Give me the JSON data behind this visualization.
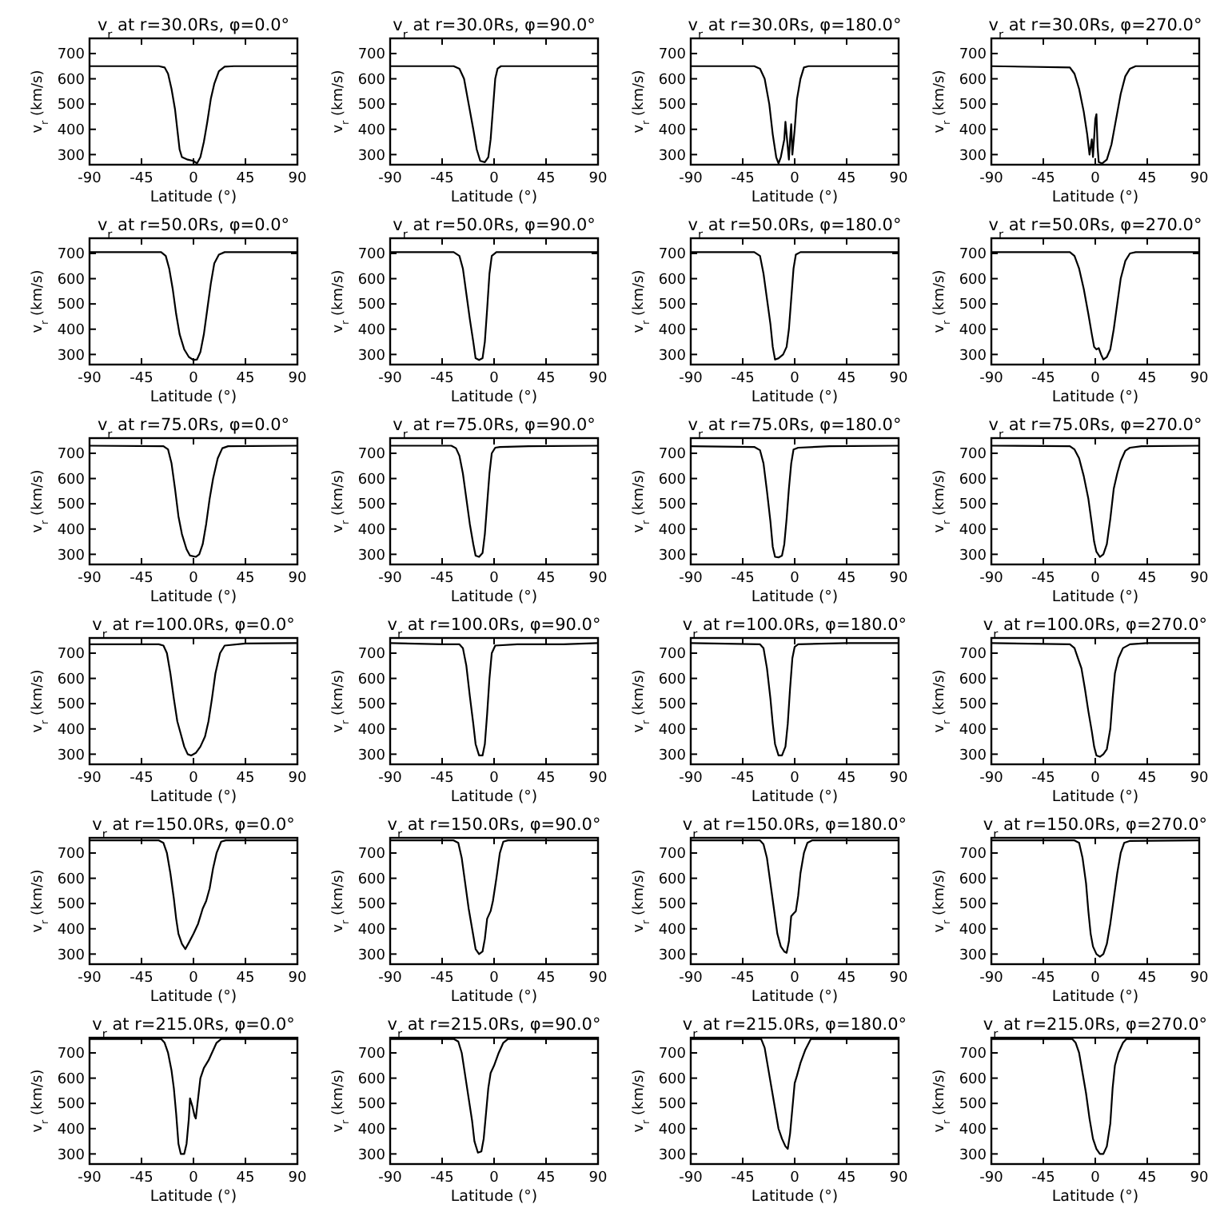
{
  "chart_data": [
    {
      "type": "line",
      "title": "v$_{r}$ at r=30.0Rs,  φ=0.0°",
      "xlabel": "Latitude (°)",
      "ylabel": "v$_{r}$ (km/s)",
      "xlim": [
        -90,
        90
      ],
      "xticks": [
        -90,
        -45,
        0,
        45,
        90
      ],
      "ylim": [
        260,
        760
      ],
      "yticks": [
        300,
        400,
        500,
        600,
        700
      ],
      "series": [
        {
          "color": "#000000",
          "x": [
            -90,
            -30,
            -25,
            -22,
            -19,
            -16,
            -14,
            -12,
            -10,
            -5,
            0,
            3,
            6,
            9,
            12,
            15,
            18,
            22,
            27,
            35,
            90
          ],
          "values": [
            650,
            650,
            645,
            620,
            560,
            480,
            400,
            320,
            290,
            280,
            275,
            265,
            290,
            350,
            430,
            520,
            580,
            630,
            648,
            650,
            650
          ]
        }
      ]
    },
    {
      "type": "line",
      "title": "v$_{r}$ at r=30.0Rs,  φ=90.0°",
      "xlabel": "Latitude (°)",
      "ylabel": "v$_{r}$ (km/s)",
      "xlim": [
        -90,
        90
      ],
      "xticks": [
        -90,
        -45,
        0,
        45,
        90
      ],
      "ylim": [
        260,
        760
      ],
      "yticks": [
        300,
        400,
        500,
        600,
        700
      ],
      "series": [
        {
          "color": "#000000",
          "x": [
            -90,
            -35,
            -30,
            -26,
            -22,
            -18,
            -15,
            -12,
            -8,
            -5,
            -3,
            -1,
            1,
            3,
            6,
            90
          ],
          "values": [
            650,
            650,
            640,
            600,
            500,
            400,
            320,
            275,
            270,
            290,
            360,
            480,
            600,
            640,
            650,
            650
          ]
        }
      ]
    },
    {
      "type": "line",
      "title": "v$_{r}$ at r=30.0Rs,  φ=180.0°",
      "xlabel": "Latitude (°)",
      "ylabel": "v$_{r}$ (km/s)",
      "xlim": [
        -90,
        90
      ],
      "xticks": [
        -90,
        -45,
        0,
        45,
        90
      ],
      "ylim": [
        260,
        760
      ],
      "yticks": [
        300,
        400,
        500,
        600,
        700
      ],
      "series": [
        {
          "color": "#000000",
          "x": [
            -90,
            -35,
            -30,
            -26,
            -22,
            -19,
            -16,
            -14,
            -12,
            -9,
            -8,
            -6,
            -5,
            -4,
            -3,
            -2,
            0,
            2,
            5,
            8,
            12,
            90
          ],
          "values": [
            650,
            650,
            640,
            600,
            500,
            380,
            290,
            265,
            290,
            360,
            430,
            330,
            280,
            360,
            420,
            300,
            400,
            520,
            600,
            645,
            650,
            650
          ]
        }
      ]
    },
    {
      "type": "line",
      "title": "v$_{r}$ at r=30.0Rs,  φ=270.0°",
      "xlabel": "Latitude (°)",
      "ylabel": "v$_{r}$ (km/s)",
      "xlim": [
        -90,
        90
      ],
      "xticks": [
        -90,
        -45,
        0,
        45,
        90
      ],
      "ylim": [
        260,
        760
      ],
      "yticks": [
        300,
        400,
        500,
        600,
        700
      ],
      "series": [
        {
          "color": "#000000",
          "x": [
            -90,
            -22,
            -18,
            -14,
            -10,
            -7,
            -5,
            -3,
            -2,
            0,
            1,
            2,
            3,
            6,
            10,
            14,
            18,
            22,
            26,
            30,
            35,
            90
          ],
          "values": [
            650,
            645,
            620,
            560,
            470,
            380,
            300,
            360,
            290,
            440,
            460,
            330,
            270,
            265,
            280,
            340,
            440,
            540,
            610,
            640,
            650,
            650
          ]
        }
      ]
    },
    {
      "type": "line",
      "title": "v$_{r}$ at r=50.0Rs,  φ=0.0°",
      "xlabel": "Latitude (°)",
      "ylabel": "v$_{r}$ (km/s)",
      "xlim": [
        -90,
        90
      ],
      "xticks": [
        -90,
        -45,
        0,
        45,
        90
      ],
      "ylim": [
        260,
        760
      ],
      "yticks": [
        300,
        400,
        500,
        600,
        700
      ],
      "series": [
        {
          "color": "#000000",
          "x": [
            -90,
            -28,
            -24,
            -21,
            -18,
            -15,
            -12,
            -8,
            -4,
            0,
            3,
            6,
            9,
            12,
            15,
            18,
            22,
            27,
            90
          ],
          "values": [
            705,
            705,
            690,
            640,
            560,
            460,
            380,
            320,
            290,
            278,
            280,
            310,
            380,
            480,
            580,
            660,
            695,
            705,
            705
          ]
        }
      ]
    },
    {
      "type": "line",
      "title": "v$_{r}$ at r=50.0Rs,  φ=90.0°",
      "xlabel": "Latitude (°)",
      "ylabel": "v$_{r}$ (km/s)",
      "xlim": [
        -90,
        90
      ],
      "xticks": [
        -90,
        -45,
        0,
        45,
        90
      ],
      "ylim": [
        260,
        760
      ],
      "yticks": [
        300,
        400,
        500,
        600,
        700
      ],
      "series": [
        {
          "color": "#000000",
          "x": [
            -90,
            -35,
            -30,
            -27,
            -24,
            -21,
            -18,
            -16,
            -13,
            -10,
            -8,
            -6,
            -4,
            -2,
            2,
            90
          ],
          "values": [
            705,
            705,
            690,
            640,
            540,
            440,
            350,
            285,
            278,
            285,
            350,
            480,
            620,
            690,
            705,
            705
          ]
        }
      ]
    },
    {
      "type": "line",
      "title": "v$_{r}$ at r=50.0Rs,  φ=180.0°",
      "xlabel": "Latitude (°)",
      "ylabel": "v$_{r}$ (km/s)",
      "xlim": [
        -90,
        90
      ],
      "xticks": [
        -90,
        -45,
        0,
        45,
        90
      ],
      "ylim": [
        260,
        760
      ],
      "yticks": [
        300,
        400,
        500,
        600,
        700
      ],
      "series": [
        {
          "color": "#000000",
          "x": [
            -90,
            -35,
            -30,
            -27,
            -24,
            -21,
            -19,
            -17,
            -14,
            -10,
            -7,
            -5,
            -3,
            -1,
            1,
            5,
            90
          ],
          "values": [
            705,
            705,
            690,
            620,
            520,
            420,
            330,
            280,
            285,
            300,
            330,
            400,
            520,
            640,
            695,
            705,
            705
          ]
        }
      ]
    },
    {
      "type": "line",
      "title": "v$_{r}$ at r=50.0Rs,  φ=270.0°",
      "xlabel": "Latitude (°)",
      "ylabel": "v$_{r}$ (km/s)",
      "xlim": [
        -90,
        90
      ],
      "xticks": [
        -90,
        -45,
        0,
        45,
        90
      ],
      "ylim": [
        260,
        760
      ],
      "yticks": [
        300,
        400,
        500,
        600,
        700
      ],
      "series": [
        {
          "color": "#000000",
          "x": [
            -90,
            -22,
            -18,
            -14,
            -10,
            -6,
            -3,
            -1,
            1,
            3,
            5,
            7,
            10,
            13,
            16,
            19,
            22,
            26,
            30,
            35,
            90
          ],
          "values": [
            705,
            705,
            690,
            640,
            560,
            460,
            380,
            330,
            320,
            325,
            300,
            280,
            290,
            320,
            400,
            500,
            600,
            670,
            700,
            705,
            705
          ]
        }
      ]
    },
    {
      "type": "line",
      "title": "v$_{r}$ at r=75.0Rs,  φ=0.0°",
      "xlabel": "Latitude (°)",
      "ylabel": "v$_{r}$ (km/s)",
      "xlim": [
        -90,
        90
      ],
      "xticks": [
        -90,
        -45,
        0,
        45,
        90
      ],
      "ylim": [
        260,
        760
      ],
      "yticks": [
        300,
        400,
        500,
        600,
        700
      ],
      "series": [
        {
          "color": "#000000",
          "x": [
            -90,
            -26,
            -22,
            -19,
            -16,
            -13,
            -10,
            -6,
            -3,
            2,
            5,
            8,
            11,
            14,
            17,
            21,
            25,
            30,
            90
          ],
          "values": [
            730,
            728,
            715,
            660,
            560,
            450,
            380,
            320,
            295,
            290,
            300,
            340,
            420,
            520,
            600,
            680,
            720,
            728,
            730
          ]
        }
      ]
    },
    {
      "type": "line",
      "title": "v$_{r}$ at r=75.0Rs,  φ=90.0°",
      "xlabel": "Latitude (°)",
      "ylabel": "v$_{r}$ (km/s)",
      "xlim": [
        -90,
        90
      ],
      "xticks": [
        -90,
        -45,
        0,
        45,
        90
      ],
      "ylim": [
        260,
        760
      ],
      "yticks": [
        300,
        400,
        500,
        600,
        700
      ],
      "series": [
        {
          "color": "#000000",
          "x": [
            -90,
            -37,
            -33,
            -30,
            -27,
            -24,
            -21,
            -18,
            -16,
            -13,
            -10,
            -8,
            -6,
            -4,
            -2,
            1,
            5,
            30,
            90
          ],
          "values": [
            730,
            730,
            720,
            690,
            620,
            520,
            420,
            340,
            295,
            290,
            305,
            380,
            500,
            620,
            700,
            722,
            725,
            728,
            730
          ]
        }
      ]
    },
    {
      "type": "line",
      "title": "v$_{r}$ at r=75.0Rs,  φ=180.0°",
      "xlabel": "Latitude (°)",
      "ylabel": "v$_{r}$ (km/s)",
      "xlim": [
        -90,
        90
      ],
      "xticks": [
        -90,
        -45,
        0,
        45,
        90
      ],
      "ylim": [
        260,
        760
      ],
      "yticks": [
        300,
        400,
        500,
        600,
        700
      ],
      "series": [
        {
          "color": "#000000",
          "x": [
            -90,
            -35,
            -30,
            -27,
            -24,
            -21,
            -19,
            -17,
            -14,
            -11,
            -9,
            -7,
            -5,
            -3,
            -1,
            3,
            30,
            90
          ],
          "values": [
            728,
            725,
            712,
            660,
            550,
            430,
            330,
            290,
            288,
            295,
            340,
            440,
            560,
            660,
            715,
            722,
            728,
            730
          ]
        }
      ]
    },
    {
      "type": "line",
      "title": "v$_{r}$ at r=75.0Rs,  φ=270.0°",
      "xlabel": "Latitude (°)",
      "ylabel": "v$_{r}$ (km/s)",
      "xlim": [
        -90,
        90
      ],
      "xticks": [
        -90,
        -45,
        0,
        45,
        90
      ],
      "ylim": [
        260,
        760
      ],
      "yticks": [
        300,
        400,
        500,
        600,
        700
      ],
      "series": [
        {
          "color": "#000000",
          "x": [
            -90,
            -22,
            -18,
            -14,
            -10,
            -6,
            -3,
            -1,
            1,
            4,
            7,
            10,
            13,
            16,
            19,
            22,
            26,
            30,
            40,
            90
          ],
          "values": [
            730,
            728,
            715,
            680,
            610,
            520,
            420,
            350,
            310,
            290,
            300,
            340,
            440,
            560,
            620,
            670,
            710,
            722,
            728,
            730
          ]
        }
      ]
    },
    {
      "type": "line",
      "title": "v$_{r}$ at r=100.0Rs,  φ=0.0°",
      "xlabel": "Latitude (°)",
      "ylabel": "v$_{r}$ (km/s)",
      "xlim": [
        -90,
        90
      ],
      "xticks": [
        -90,
        -45,
        0,
        45,
        90
      ],
      "ylim": [
        260,
        760
      ],
      "yticks": [
        300,
        400,
        500,
        600,
        700
      ],
      "series": [
        {
          "color": "#000000",
          "x": [
            -90,
            -30,
            -26,
            -23,
            -20,
            -17,
            -14,
            -11,
            -8,
            -5,
            -2,
            2,
            6,
            10,
            13,
            16,
            19,
            23,
            27,
            45,
            90
          ],
          "values": [
            735,
            735,
            730,
            700,
            620,
            520,
            430,
            380,
            330,
            300,
            295,
            305,
            330,
            370,
            430,
            520,
            620,
            700,
            730,
            738,
            740
          ]
        }
      ]
    },
    {
      "type": "line",
      "title": "v$_{r}$ at r=100.0Rs,  φ=90.0°",
      "xlabel": "Latitude (°)",
      "ylabel": "v$_{r}$ (km/s)",
      "xlim": [
        -90,
        90
      ],
      "xticks": [
        -90,
        -45,
        0,
        45,
        90
      ],
      "ylim": [
        260,
        760
      ],
      "yticks": [
        300,
        400,
        500,
        600,
        700
      ],
      "series": [
        {
          "color": "#000000",
          "x": [
            -90,
            -45,
            -30,
            -27,
            -24,
            -21,
            -18,
            -16,
            -13,
            -10,
            -8,
            -6,
            -4,
            -2,
            1,
            20,
            60,
            90
          ],
          "values": [
            740,
            735,
            735,
            720,
            650,
            530,
            420,
            340,
            295,
            295,
            340,
            460,
            600,
            700,
            730,
            735,
            735,
            740
          ]
        }
      ]
    },
    {
      "type": "line",
      "title": "v$_{r}$ at r=100.0Rs,  φ=180.0°",
      "xlabel": "Latitude (°)",
      "ylabel": "v$_{r}$ (km/s)",
      "xlim": [
        -90,
        90
      ],
      "xticks": [
        -90,
        -45,
        0,
        45,
        90
      ],
      "ylim": [
        260,
        760
      ],
      "yticks": [
        300,
        400,
        500,
        600,
        700
      ],
      "series": [
        {
          "color": "#000000",
          "x": [
            -90,
            -30,
            -27,
            -24,
            -21,
            -19,
            -17,
            -14,
            -11,
            -8,
            -6,
            -4,
            -2,
            0,
            3,
            45,
            90
          ],
          "values": [
            740,
            735,
            720,
            640,
            520,
            420,
            340,
            295,
            295,
            330,
            420,
            560,
            680,
            725,
            735,
            740,
            740
          ]
        }
      ]
    },
    {
      "type": "line",
      "title": "v$_{r}$ at r=100.0Rs,  φ=270.0°",
      "xlabel": "Latitude (°)",
      "ylabel": "v$_{r}$ (km/s)",
      "xlim": [
        -90,
        90
      ],
      "xticks": [
        -90,
        -45,
        0,
        45,
        90
      ],
      "ylim": [
        260,
        760
      ],
      "yticks": [
        300,
        400,
        500,
        600,
        700
      ],
      "series": [
        {
          "color": "#000000",
          "x": [
            -90,
            -22,
            -18,
            -15,
            -12,
            -9,
            -6,
            -3,
            -1,
            1,
            4,
            7,
            10,
            13,
            15,
            17,
            20,
            24,
            30,
            45,
            90
          ],
          "values": [
            740,
            735,
            720,
            680,
            640,
            560,
            470,
            390,
            330,
            295,
            290,
            300,
            320,
            400,
            520,
            620,
            680,
            720,
            735,
            740,
            740
          ]
        }
      ]
    },
    {
      "type": "line",
      "title": "v$_{r}$ at r=150.0Rs,  φ=0.0°",
      "xlabel": "Latitude (°)",
      "ylabel": "v$_{r}$ (km/s)",
      "xlim": [
        -90,
        90
      ],
      "xticks": [
        -90,
        -45,
        0,
        45,
        90
      ],
      "ylim": [
        260,
        760
      ],
      "yticks": [
        300,
        400,
        500,
        600,
        700
      ],
      "series": [
        {
          "color": "#000000",
          "x": [
            -90,
            -30,
            -26,
            -23,
            -20,
            -17,
            -15,
            -13,
            -10,
            -7,
            -4,
            0,
            4,
            8,
            11,
            14,
            17,
            20,
            24,
            28,
            90
          ],
          "values": [
            750,
            750,
            740,
            700,
            620,
            520,
            440,
            380,
            340,
            320,
            345,
            380,
            420,
            480,
            510,
            560,
            640,
            700,
            745,
            750,
            750
          ]
        }
      ]
    },
    {
      "type": "line",
      "title": "v$_{r}$ at r=150.0Rs,  φ=90.0°",
      "xlabel": "Latitude (°)",
      "ylabel": "v$_{r}$ (km/s)",
      "xlim": [
        -90,
        90
      ],
      "xticks": [
        -90,
        -45,
        0,
        45,
        90
      ],
      "ylim": [
        260,
        760
      ],
      "yticks": [
        300,
        400,
        500,
        600,
        700
      ],
      "series": [
        {
          "color": "#000000",
          "x": [
            -90,
            -35,
            -31,
            -28,
            -25,
            -22,
            -19,
            -16,
            -13,
            -10,
            -8,
            -6,
            -3,
            -1,
            2,
            5,
            8,
            12,
            90
          ],
          "values": [
            750,
            750,
            740,
            680,
            580,
            480,
            400,
            320,
            300,
            310,
            360,
            440,
            470,
            510,
            600,
            700,
            745,
            750,
            750
          ]
        }
      ]
    },
    {
      "type": "line",
      "title": "v$_{r}$ at r=150.0Rs,  φ=180.0°",
      "xlabel": "Latitude (°)",
      "ylabel": "v$_{r}$ (km/s)",
      "xlim": [
        -90,
        90
      ],
      "xticks": [
        -90,
        -45,
        0,
        45,
        90
      ],
      "ylim": [
        260,
        760
      ],
      "yticks": [
        300,
        400,
        500,
        600,
        700
      ],
      "series": [
        {
          "color": "#000000",
          "x": [
            -90,
            -30,
            -27,
            -24,
            -21,
            -18,
            -15,
            -12,
            -9,
            -7,
            -5,
            -3,
            -1,
            1,
            3,
            5,
            8,
            11,
            15,
            90
          ],
          "values": [
            750,
            750,
            735,
            680,
            580,
            480,
            380,
            330,
            310,
            305,
            350,
            450,
            460,
            470,
            530,
            620,
            700,
            740,
            750,
            750
          ]
        }
      ]
    },
    {
      "type": "line",
      "title": "v$_{r}$ at r=150.0Rs,  φ=270.0°",
      "xlabel": "Latitude (°)",
      "ylabel": "v$_{r}$ (km/s)",
      "xlim": [
        -90,
        90
      ],
      "xticks": [
        -90,
        -45,
        0,
        45,
        90
      ],
      "ylim": [
        260,
        760
      ],
      "yticks": [
        300,
        400,
        500,
        600,
        700
      ],
      "series": [
        {
          "color": "#000000",
          "x": [
            -90,
            -18,
            -14,
            -11,
            -8,
            -6,
            -4,
            -2,
            1,
            4,
            7,
            10,
            13,
            16,
            19,
            22,
            25,
            30,
            90
          ],
          "values": [
            750,
            750,
            740,
            680,
            580,
            470,
            380,
            330,
            300,
            290,
            300,
            340,
            420,
            520,
            620,
            700,
            740,
            748,
            750
          ]
        }
      ]
    },
    {
      "type": "line",
      "title": "v$_{r}$ at r=215.0Rs,  φ=0.0°",
      "xlabel": "Latitude (°)",
      "ylabel": "v$_{r}$ (km/s)",
      "xlim": [
        -90,
        90
      ],
      "xticks": [
        -90,
        -45,
        0,
        45,
        90
      ],
      "ylim": [
        260,
        760
      ],
      "yticks": [
        300,
        400,
        500,
        600,
        700
      ],
      "series": [
        {
          "color": "#000000",
          "x": [
            -90,
            -28,
            -25,
            -22,
            -19,
            -17,
            -15,
            -13,
            -11,
            -8,
            -6,
            -4,
            -3,
            -1,
            1,
            2,
            4,
            6,
            9,
            13,
            17,
            20,
            24,
            90
          ],
          "values": [
            755,
            755,
            740,
            700,
            630,
            560,
            460,
            340,
            300,
            300,
            340,
            440,
            520,
            490,
            450,
            440,
            520,
            600,
            640,
            670,
            710,
            740,
            755,
            755
          ]
        }
      ]
    },
    {
      "type": "line",
      "title": "v$_{r}$ at r=215.0Rs,  φ=90.0°",
      "xlabel": "Latitude (°)",
      "ylabel": "v$_{r}$ (km/s)",
      "xlim": [
        -90,
        90
      ],
      "xticks": [
        -90,
        -45,
        0,
        45,
        90
      ],
      "ylim": [
        260,
        760
      ],
      "yticks": [
        300,
        400,
        500,
        600,
        700
      ],
      "series": [
        {
          "color": "#000000",
          "x": [
            -90,
            -35,
            -31,
            -28,
            -25,
            -22,
            -19,
            -17,
            -14,
            -11,
            -9,
            -7,
            -5,
            -3,
            0,
            4,
            8,
            12,
            90
          ],
          "values": [
            755,
            755,
            745,
            700,
            610,
            520,
            430,
            350,
            305,
            310,
            360,
            460,
            560,
            620,
            650,
            700,
            740,
            755,
            755
          ]
        }
      ]
    },
    {
      "type": "line",
      "title": "v$_{r}$ at r=215.0Rs,  φ=180.0°",
      "xlabel": "Latitude (°)",
      "ylabel": "v$_{r}$ (km/s)",
      "xlim": [
        -90,
        90
      ],
      "xticks": [
        -90,
        -45,
        0,
        45,
        90
      ],
      "ylim": [
        260,
        760
      ],
      "yticks": [
        300,
        400,
        500,
        600,
        700
      ],
      "series": [
        {
          "color": "#000000",
          "x": [
            -90,
            -29,
            -26,
            -23,
            -20,
            -17,
            -14,
            -11,
            -8,
            -6,
            -4,
            -2,
            0,
            2,
            5,
            9,
            14,
            90
          ],
          "values": [
            755,
            755,
            720,
            640,
            560,
            480,
            400,
            360,
            330,
            320,
            380,
            480,
            580,
            610,
            660,
            710,
            755,
            755
          ]
        }
      ]
    },
    {
      "type": "line",
      "title": "v$_{r}$ at r=215.0Rs,  φ=270.0°",
      "xlabel": "Latitude (°)",
      "ylabel": "v$_{r}$ (km/s)",
      "xlim": [
        -90,
        90
      ],
      "xticks": [
        -90,
        -45,
        0,
        45,
        90
      ],
      "ylim": [
        260,
        760
      ],
      "yticks": [
        300,
        400,
        500,
        600,
        700
      ],
      "series": [
        {
          "color": "#000000",
          "x": [
            -90,
            -20,
            -17,
            -14,
            -11,
            -8,
            -5,
            -2,
            1,
            4,
            7,
            10,
            13,
            15,
            17,
            20,
            24,
            27,
            90
          ],
          "values": [
            755,
            755,
            740,
            700,
            620,
            540,
            440,
            360,
            320,
            300,
            300,
            330,
            420,
            560,
            650,
            700,
            740,
            755,
            755
          ]
        }
      ]
    }
  ]
}
